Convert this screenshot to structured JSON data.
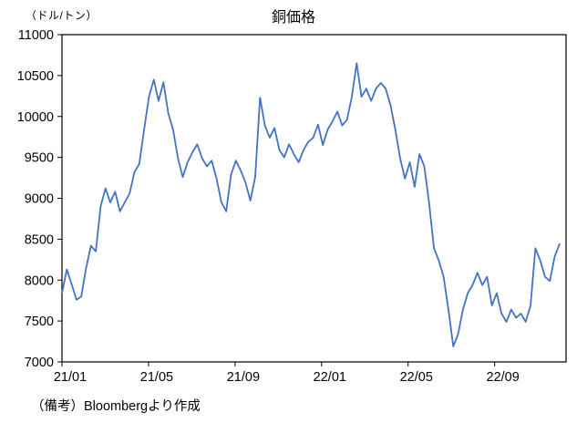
{
  "chart": {
    "title": "銅価格",
    "unit_label": "（ドル/トン）",
    "note": "（備考）Bloombergより作成"
  },
  "chart_data": {
    "type": "line",
    "title": "銅価格",
    "ylabel": "（ドル/トン）",
    "xlabel": "",
    "grid": false,
    "legend": "none",
    "source_note": "（備考）Bloombergより作成",
    "ylim": [
      7000,
      11000
    ],
    "y_ticks": [
      7000,
      7500,
      8000,
      8500,
      9000,
      9500,
      10000,
      10500,
      11000
    ],
    "x_tick_labels": [
      "21/01",
      "21/05",
      "21/09",
      "22/01",
      "22/05",
      "22/09"
    ],
    "x_tick_positions_months": [
      0,
      4,
      8,
      12,
      16,
      20
    ],
    "x_axis_span_months": 23.3,
    "x_data_span_months": 23.0,
    "line_color": "#4472C4",
    "series": [
      {
        "name": "銅価格",
        "color": "#4472C4",
        "cadence": "weekly (approx., 21/01 - 22/12)",
        "values": [
          7840,
          8130,
          7950,
          7760,
          7800,
          8150,
          8420,
          8350,
          8900,
          9120,
          8950,
          9080,
          8840,
          8950,
          9060,
          9320,
          9420,
          9840,
          10240,
          10450,
          10190,
          10420,
          10040,
          9840,
          9490,
          9260,
          9440,
          9560,
          9660,
          9490,
          9390,
          9460,
          9240,
          8950,
          8840,
          9290,
          9460,
          9340,
          9190,
          8970,
          9260,
          10230,
          9890,
          9740,
          9860,
          9590,
          9500,
          9660,
          9540,
          9440,
          9590,
          9690,
          9740,
          9900,
          9650,
          9840,
          9940,
          10060,
          9890,
          9960,
          10240,
          10650,
          10240,
          10340,
          10190,
          10340,
          10410,
          10340,
          10140,
          9840,
          9490,
          9240,
          9440,
          9140,
          9540,
          9390,
          8940,
          8390,
          8240,
          8040,
          7640,
          7190,
          7340,
          7640,
          7840,
          7940,
          8090,
          7940,
          8040,
          7690,
          7840,
          7590,
          7490,
          7640,
          7540,
          7590,
          7490,
          7690,
          8390,
          8240,
          8040,
          7990,
          8290,
          8440
        ]
      }
    ]
  }
}
